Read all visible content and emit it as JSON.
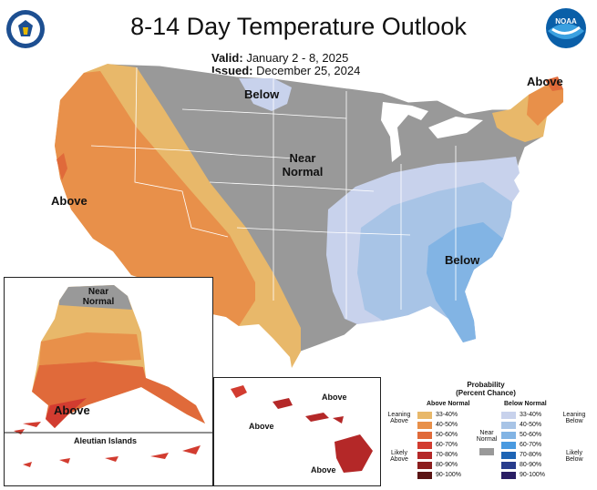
{
  "title": "8-14 Day Temperature Outlook",
  "valid_label": "Valid:",
  "valid_value": "January 2 - 8, 2025",
  "issued_label": "Issued:",
  "issued_value": "December 25, 2024",
  "logos": {
    "left": "commerce-seal",
    "right": "noaa-logo",
    "noaa_text": "NOAA"
  },
  "map_labels": {
    "below_north": "Below",
    "above_northeast": "Above",
    "near_normal_line1": "Near",
    "near_normal_line2": "Normal",
    "above_west": "Above",
    "below_southeast": "Below",
    "alaska_near_line1": "Near",
    "alaska_near_line2": "Normal",
    "alaska_above": "Above",
    "aleutian": "Aleutian Islands",
    "hawaii_above_1": "Above",
    "hawaii_above_2": "Above",
    "hawaii_above_3": "Above"
  },
  "legend": {
    "title_line1": "Probability",
    "title_line2": "(Percent Chance)",
    "above_header": "Above Normal",
    "below_header": "Below Normal",
    "near_label_line1": "Near",
    "near_label_line2": "Normal",
    "leaning_above_1": "Leaning",
    "leaning_above_2": "Above",
    "likely_above_1": "Likely",
    "likely_above_2": "Above",
    "leaning_below_1": "Leaning",
    "leaning_below_2": "Below",
    "likely_below_1": "Likely",
    "likely_below_2": "Below",
    "ranges": [
      "33-40%",
      "40-50%",
      "50-60%",
      "60-70%",
      "70-80%",
      "80-90%",
      "90-100%"
    ],
    "above_colors": [
      "#e8b86a",
      "#e8904a",
      "#e06a3a",
      "#d23c30",
      "#b42828",
      "#8c1e1e",
      "#5a1414"
    ],
    "below_colors": [
      "#c8d2ec",
      "#a8c4e6",
      "#82b4e4",
      "#4a9ae0",
      "#1e64b4",
      "#283c8c",
      "#2a1e64"
    ],
    "near_color": "#999999"
  }
}
